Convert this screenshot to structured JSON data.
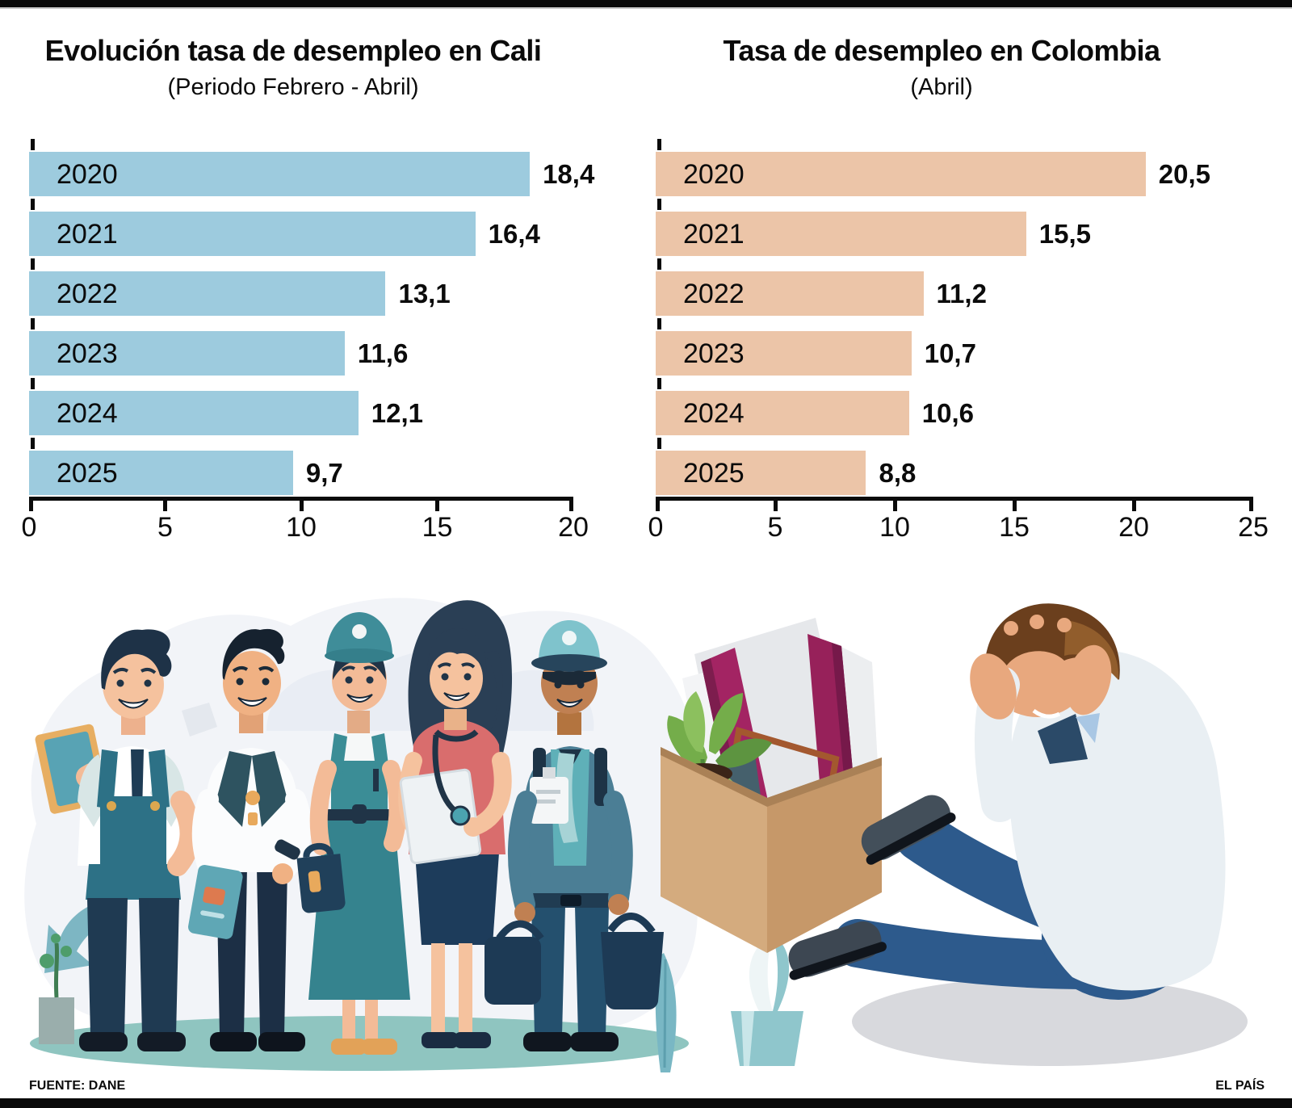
{
  "footer": {
    "source": "FUENTE: DANE",
    "brand": "EL PAÍS"
  },
  "chart_data": [
    {
      "type": "bar",
      "orientation": "horizontal",
      "title": "Evolución tasa de desempleo en Cali",
      "subtitle": "(Periodo Febrero - Abril)",
      "categories": [
        "2020",
        "2021",
        "2022",
        "2023",
        "2024",
        "2025"
      ],
      "values": [
        18.4,
        16.4,
        13.1,
        11.6,
        12.1,
        9.7
      ],
      "value_labels": [
        "18,4",
        "16,4",
        "13,1",
        "11,6",
        "12,1",
        "9,7"
      ],
      "xlabel": "",
      "ylabel": "",
      "xlim": [
        0,
        20
      ],
      "x_ticks": [
        0,
        5,
        10,
        15,
        20
      ],
      "bar_color": "#9dcbde",
      "grid": false,
      "legend": "none",
      "value_label_position": "outside-end"
    },
    {
      "type": "bar",
      "orientation": "horizontal",
      "title": "Tasa de desempleo en Colombia",
      "subtitle": "(Abril)",
      "categories": [
        "2020",
        "2021",
        "2022",
        "2023",
        "2024",
        "2025"
      ],
      "values": [
        20.5,
        15.5,
        11.2,
        10.7,
        10.6,
        8.8
      ],
      "value_labels": [
        "20,5",
        "15,5",
        "11,2",
        "10,7",
        "10,6",
        "8,8"
      ],
      "xlabel": "",
      "ylabel": "",
      "xlim": [
        0,
        25
      ],
      "x_ticks": [
        0,
        5,
        10,
        15,
        20,
        25
      ],
      "bar_color": "#ecc5a8",
      "grid": false,
      "legend": "none",
      "value_label_position": "outside-end"
    }
  ],
  "illustration": {
    "description": "Five workers standing, a cardboard box with folders and a plant, and an unemployed man sitting with hands on his head"
  },
  "colors": {
    "cali_bar": "#9dcbde",
    "colombia_bar": "#ecc5a8",
    "axis": "#0b0b0b",
    "top_bottom_bars": "#0a0a0a"
  }
}
